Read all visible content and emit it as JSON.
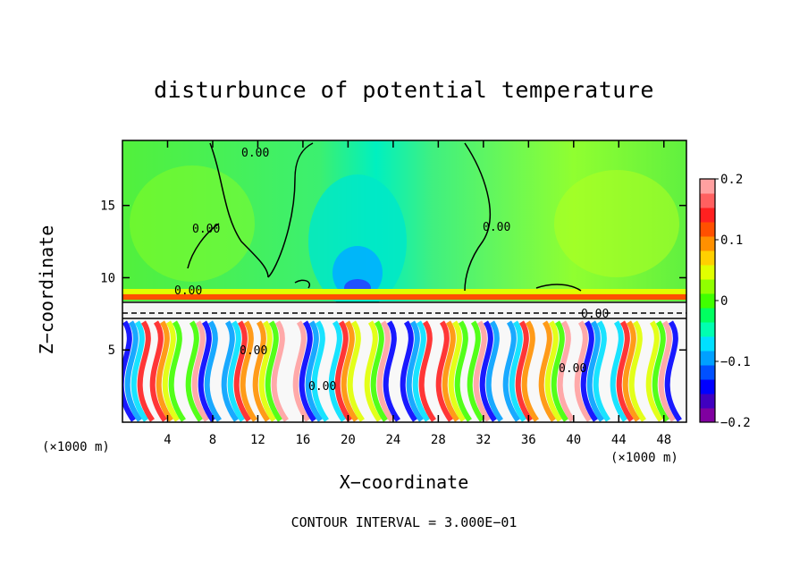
{
  "chart_data": {
    "type": "heatmap",
    "title": "disturbunce of potential temperature",
    "xlabel": "X−coordinate",
    "ylabel": "Z−coordinate",
    "x_unit": "(×1000 m)",
    "x_range": [
      0,
      50
    ],
    "y_range": [
      0,
      19.5
    ],
    "x_ticks": [
      4,
      8,
      12,
      16,
      20,
      24,
      28,
      32,
      36,
      40,
      44,
      48
    ],
    "y_ticks": [
      5,
      10,
      15
    ],
    "colorbar": {
      "min": -0.2,
      "max": 0.2,
      "tick_values": [
        0.2,
        0.1,
        0,
        -0.1,
        -0.2
      ],
      "tick_labels": [
        "0.2",
        "0.1",
        "0",
        "−0.1",
        "−0.2"
      ],
      "colors": [
        "#8000a0",
        "#4000c0",
        "#0000ff",
        "#0050ff",
        "#00a0ff",
        "#00e0ff",
        "#00ffb0",
        "#00ff60",
        "#40ff00",
        "#90ff00",
        "#e0ff00",
        "#ffd000",
        "#ff9000",
        "#ff5000",
        "#ff2020",
        "#ff6060",
        "#ffa0a0"
      ]
    },
    "contour_labels": [
      "0.00",
      "0.00",
      "0.00",
      "0.00",
      "0.00",
      "0.00",
      "0.00",
      "0.00"
    ],
    "contour_interval": "CONTOUR INTERVAL = 3.000E−01"
  }
}
